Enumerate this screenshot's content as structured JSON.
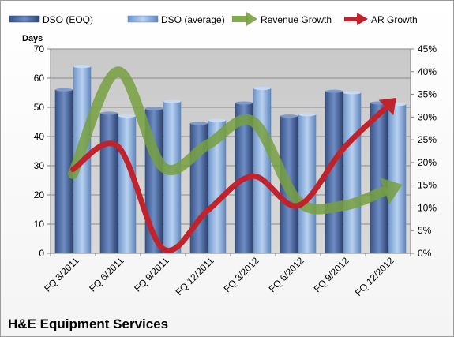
{
  "chart_data": {
    "type": "bar",
    "title": "",
    "categories": [
      "FQ 3/2011",
      "FQ 6/2011",
      "FQ 9/2011",
      "FQ 12/2011",
      "FQ 3/2012",
      "FQ 6/2012",
      "FQ 9/2012",
      "FQ 12/2012"
    ],
    "ylabel": "Days",
    "ylim": [
      0,
      70
    ],
    "yticks": [
      "0",
      "10",
      "20",
      "30",
      "40",
      "50",
      "60",
      "70"
    ],
    "y2lim": [
      0,
      45
    ],
    "y2ticks": [
      "0%",
      "5%",
      "10%",
      "15%",
      "20%",
      "25%",
      "30%",
      "35%",
      "40%",
      "45%"
    ],
    "grid": true,
    "legend_position": "top",
    "series": [
      {
        "name": "DSO (EOQ)",
        "kind": "bar",
        "axis": "left",
        "color": "#4F6FA8",
        "values": [
          56,
          48,
          49.5,
          44.5,
          51.5,
          47,
          55.5,
          51.5
        ]
      },
      {
        "name": "DSO (average)",
        "kind": "bar",
        "axis": "left",
        "color": "#8FB1DE",
        "values": [
          64,
          47,
          52,
          45.5,
          56.5,
          47.5,
          55,
          51
        ]
      },
      {
        "name": "Revenue Growth",
        "kind": "line",
        "axis": "right",
        "color": "#77A03F",
        "unit": "%",
        "values": [
          17.5,
          40,
          19,
          24,
          29,
          11.5,
          10.5,
          14
        ]
      },
      {
        "name": "AR Growth",
        "kind": "line",
        "axis": "right",
        "color": "#C0232B",
        "unit": "%",
        "values": [
          18.5,
          23.5,
          1,
          9.5,
          17,
          10.5,
          23,
          32.5
        ]
      }
    ]
  },
  "footer": {
    "company_name": "H&E Equipment Services"
  }
}
